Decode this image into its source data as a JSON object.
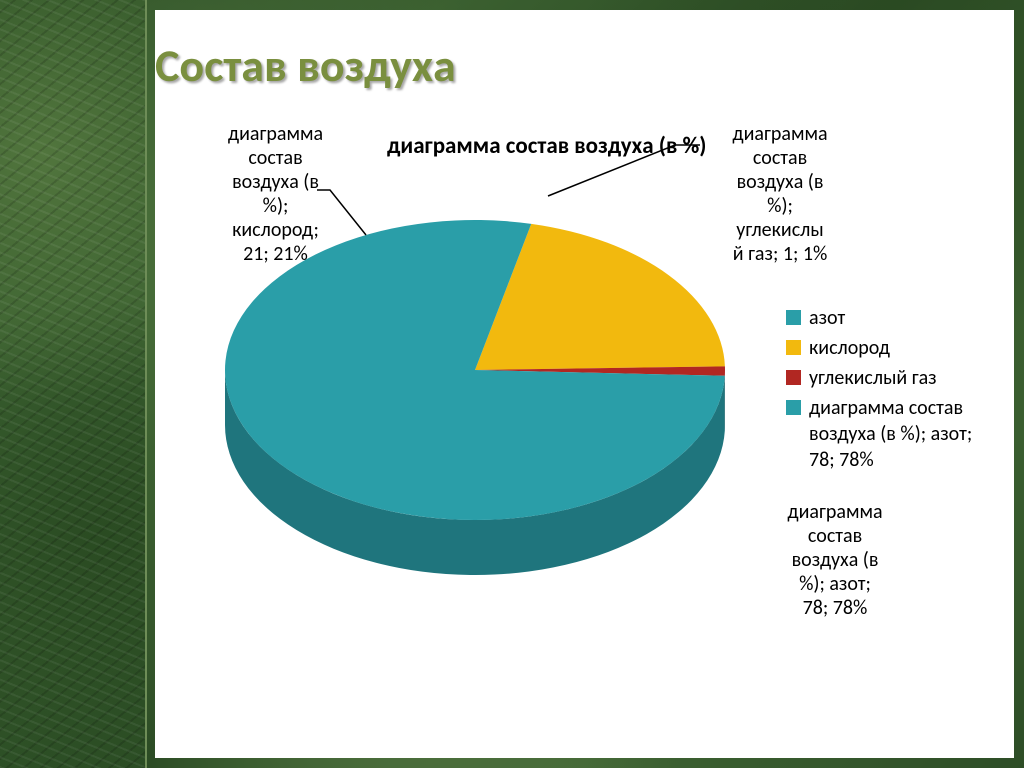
{
  "slide": {
    "title": "Состав воздуха",
    "title_color": "#7a8f3f",
    "title_fontsize": 46,
    "background_color": "#ffffff",
    "outer_texture_colors": [
      "#315529",
      "#3b6030",
      "#2a4a23"
    ],
    "left_strip_width": 145
  },
  "chart": {
    "type": "pie-3d",
    "title": "диаграмма состав воздуха (в %)",
    "title_fontsize": 23,
    "title_weight": "bold",
    "radius_x": 250,
    "radius_y": 150,
    "depth": 55,
    "start_angle_deg": -77,
    "series": [
      {
        "name": "кислород",
        "value": 21,
        "percent": "21%",
        "color": "#f2b90e",
        "side_color": "#c2940b",
        "legend_label": "кислород"
      },
      {
        "name": "углекислый газ",
        "value": 1,
        "percent": "1%",
        "color": "#b12722",
        "side_color": "#7d1b18",
        "legend_label": "углекислый газ"
      },
      {
        "name": "азот",
        "value": 78,
        "percent": "78%",
        "color": "#2a9ea8",
        "side_color": "#1f757d",
        "legend_label": "азот"
      }
    ],
    "data_labels": {
      "oxygen": {
        "lines": [
          "диаграмма",
          "состав",
          "воздуха (в",
          "%);",
          "кислород;",
          "21; 21%"
        ]
      },
      "co2": {
        "lines": [
          "диаграмма",
          "состав",
          "воздуха (в",
          "%);",
          "углекислы",
          "й газ; 1; 1%"
        ]
      },
      "nitrogen": {
        "lines": [
          "диаграмма",
          "состав",
          "воздуха (в",
          "%); азот;",
          "78; 78%"
        ]
      }
    },
    "legend": {
      "fontsize": 20,
      "items": [
        {
          "swatch": "#2a9ea8",
          "text": "азот"
        },
        {
          "swatch": "#f2b90e",
          "text": "кислород"
        },
        {
          "swatch": "#b12722",
          "text": "углекислый газ"
        },
        {
          "swatch": "#2a9ea8",
          "text": "диаграмма состав воздуха (в %); азот; 78; 78%"
        }
      ]
    },
    "label_fontsize": 20
  }
}
